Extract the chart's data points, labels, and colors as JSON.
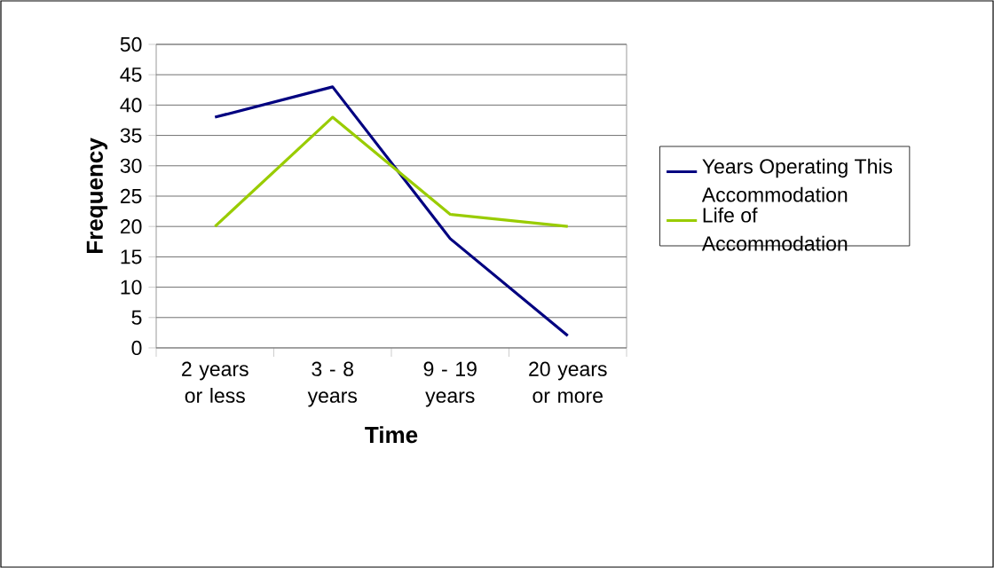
{
  "chart_data": {
    "type": "line",
    "xlabel": "Time",
    "ylabel": "Frequency",
    "categories": [
      "2 years or less",
      "3 - 8 years",
      "9 - 19 years",
      "20 years or more"
    ],
    "series": [
      {
        "name": "Years Operating This Accommodation",
        "color": "#000080",
        "values": [
          38,
          43,
          18,
          2
        ]
      },
      {
        "name": "Life of Accommodation",
        "color": "#99cc00",
        "values": [
          20,
          38,
          22,
          20
        ]
      }
    ],
    "ylim": [
      0,
      50
    ],
    "yticks": [
      0,
      5,
      10,
      15,
      20,
      25,
      30,
      35,
      40,
      45,
      50
    ],
    "grid": "y",
    "legend": "right",
    "marker": "none"
  }
}
